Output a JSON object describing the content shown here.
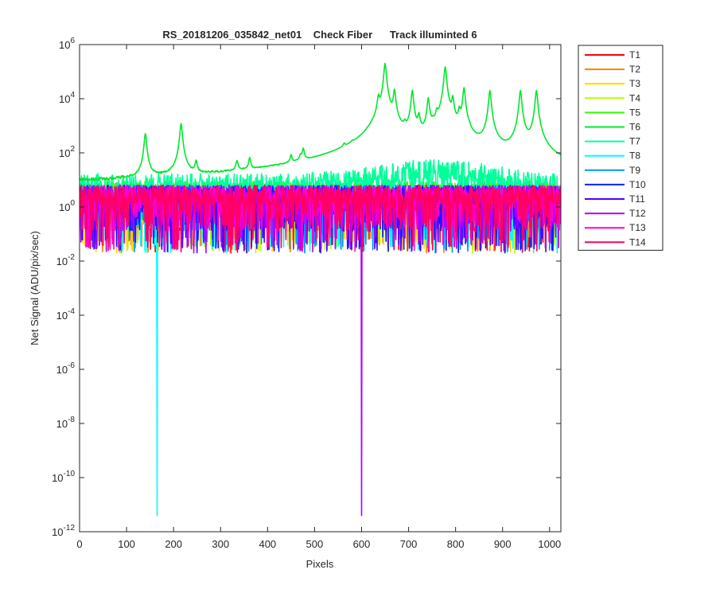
{
  "chart_data": {
    "type": "line",
    "title": "RS_20181206_035842_net01    Check Fiber      Track illuminted 6",
    "xlabel": "Pixels",
    "ylabel": "Net Signal (ADU/pix/sec)",
    "xlim": [
      0,
      1024
    ],
    "ylim": [
      1e-12,
      1000000.0
    ],
    "yscale": "log",
    "x_ticks": [
      0,
      100,
      200,
      300,
      400,
      500,
      600,
      700,
      800,
      900,
      1000
    ],
    "y_ticks": [
      {
        "base": "10",
        "exp": "-12",
        "value": 1e-12
      },
      {
        "base": "10",
        "exp": "-10",
        "value": 1e-10
      },
      {
        "base": "10",
        "exp": "-8",
        "value": 1e-08
      },
      {
        "base": "10",
        "exp": "-6",
        "value": 1e-06
      },
      {
        "base": "10",
        "exp": "-4",
        "value": 0.0001
      },
      {
        "base": "10",
        "exp": "-2",
        "value": 0.01
      },
      {
        "base": "10",
        "exp": "0",
        "value": 1
      },
      {
        "base": "10",
        "exp": "2",
        "value": 100
      },
      {
        "base": "10",
        "exp": "4",
        "value": 10000
      },
      {
        "base": "10",
        "exp": "6",
        "value": 1000000
      }
    ],
    "legend_position": "outside top-right",
    "grid": false,
    "series": [
      {
        "name": "T1",
        "color": "#ff0000",
        "noise": {
          "median": 2.0,
          "min": 0.02,
          "max": 8
        }
      },
      {
        "name": "T2",
        "color": "#ff7f00",
        "noise": {
          "median": 2.0,
          "min": 0.02,
          "max": 8
        }
      },
      {
        "name": "T3",
        "color": "#ffd700",
        "noise": {
          "median": 2.0,
          "min": 0.02,
          "max": 8
        }
      },
      {
        "name": "T4",
        "color": "#b3ff00",
        "noise": {
          "median": 2.0,
          "min": 0.02,
          "max": 8
        }
      },
      {
        "name": "T5",
        "color": "#33ff00",
        "noise": {
          "median": 5.0,
          "min": 0.5,
          "max": 10
        }
      },
      {
        "name": "T6",
        "color": "#00e82c",
        "noise": {
          "median": 5.0,
          "min": 0.5,
          "max": 10
        },
        "peaks": [
          {
            "x": 140,
            "y": 500
          },
          {
            "x": 216,
            "y": 1200
          },
          {
            "x": 248,
            "y": 30
          },
          {
            "x": 335,
            "y": 30
          },
          {
            "x": 362,
            "y": 40
          },
          {
            "x": 450,
            "y": 40
          },
          {
            "x": 470,
            "y": 30
          },
          {
            "x": 476,
            "y": 90
          },
          {
            "x": 563,
            "y": 50
          },
          {
            "x": 580,
            "y": 30
          },
          {
            "x": 612,
            "y": 40
          },
          {
            "x": 622,
            "y": 80
          },
          {
            "x": 636,
            "y": 10000
          },
          {
            "x": 650,
            "y": 200000
          },
          {
            "x": 670,
            "y": 20000
          },
          {
            "x": 692,
            "y": 500
          },
          {
            "x": 708,
            "y": 20000
          },
          {
            "x": 722,
            "y": 2000
          },
          {
            "x": 742,
            "y": 10000
          },
          {
            "x": 752,
            "y": 500
          },
          {
            "x": 778,
            "y": 150000
          },
          {
            "x": 760,
            "y": 2000
          },
          {
            "x": 794,
            "y": 10000
          },
          {
            "x": 808,
            "y": 3000
          },
          {
            "x": 818,
            "y": 25000
          },
          {
            "x": 829,
            "y": 200
          },
          {
            "x": 873,
            "y": 20000
          },
          {
            "x": 938,
            "y": 20000
          },
          {
            "x": 972,
            "y": 20000
          }
        ]
      },
      {
        "name": "T7",
        "color": "#00ff99",
        "noise": {
          "median": 5.0,
          "min": 0.5,
          "max": 22
        }
      },
      {
        "name": "T8",
        "color": "#00ffff",
        "noise": {
          "median": 2.0,
          "min": 0.02,
          "max": 8
        },
        "dips": [
          {
            "x": 165,
            "y": 4e-12
          }
        ]
      },
      {
        "name": "T9",
        "color": "#0096ff",
        "noise": {
          "median": 2.0,
          "min": 0.02,
          "max": 8
        }
      },
      {
        "name": "T10",
        "color": "#0022ff",
        "noise": {
          "median": 2.0,
          "min": 0.02,
          "max": 8
        }
      },
      {
        "name": "T11",
        "color": "#4d00ff",
        "noise": {
          "median": 2.0,
          "min": 0.02,
          "max": 8
        }
      },
      {
        "name": "T12",
        "color": "#b000ff",
        "noise": {
          "median": 2.0,
          "min": 0.02,
          "max": 8
        },
        "dips": [
          {
            "x": 600,
            "y": 4e-12
          }
        ]
      },
      {
        "name": "T13",
        "color": "#ff00cc",
        "noise": {
          "median": 2.0,
          "min": 0.02,
          "max": 8
        }
      },
      {
        "name": "T14",
        "color": "#ff0066",
        "noise": {
          "median": 2.0,
          "min": 0.02,
          "max": 8
        }
      }
    ]
  }
}
